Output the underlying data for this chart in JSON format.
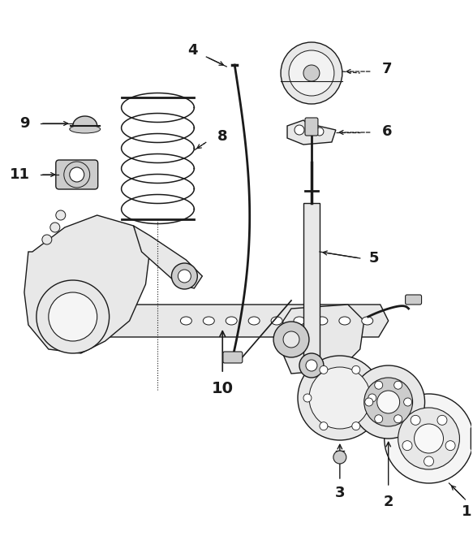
{
  "bg_color": "#ffffff",
  "line_color": "#1a1a1a",
  "fig_w": 5.83,
  "fig_h": 6.76,
  "dpi": 100,
  "lw": 1.0,
  "gray_fill": "#e8e8e8",
  "dark_fill": "#cccccc",
  "label_fs": 13
}
